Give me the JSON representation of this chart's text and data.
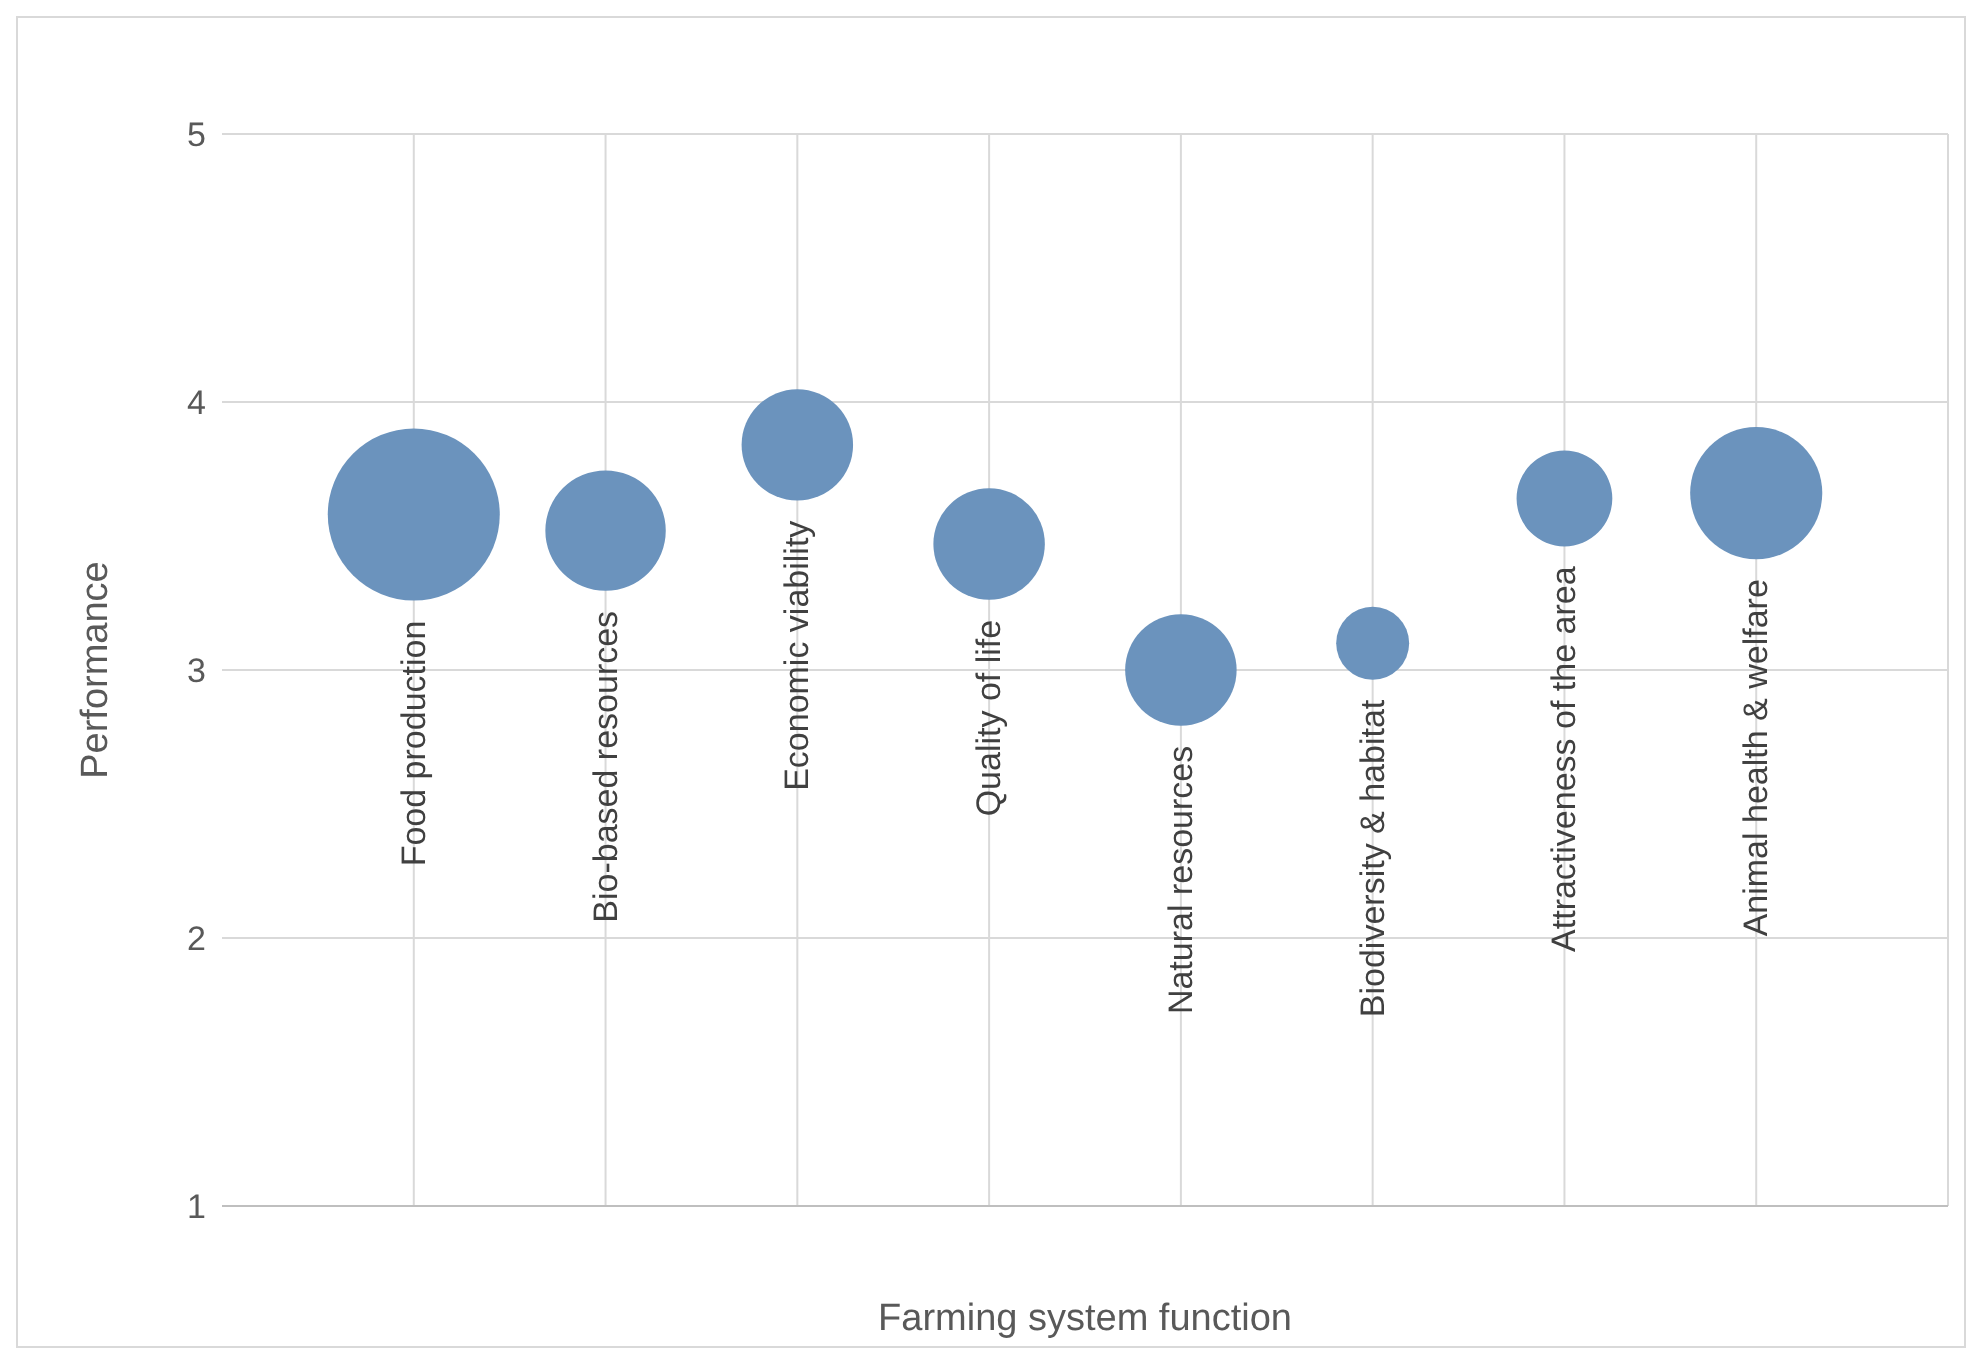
{
  "chart_data": {
    "type": "bubble",
    "xlabel": "Farming system function",
    "ylabel": "Performance",
    "categories": [
      "Food production",
      "Bio-based resources",
      "Economic viability",
      "Quality of life",
      "Natural resources",
      "Biodiversity & habitat",
      "Attractiveness of the area",
      "Animal health & welfare"
    ],
    "values": [
      3.58,
      3.52,
      3.84,
      3.47,
      3.0,
      3.1,
      3.64,
      3.66
    ],
    "sizes": [
      1,
      0.49,
      0.42,
      0.42,
      0.42,
      0.18,
      0.31,
      0.59
    ],
    "color": "#6b93bd",
    "ylim": [
      1,
      5
    ],
    "yticks": [
      1,
      2,
      3,
      4,
      5
    ],
    "grid": true
  }
}
